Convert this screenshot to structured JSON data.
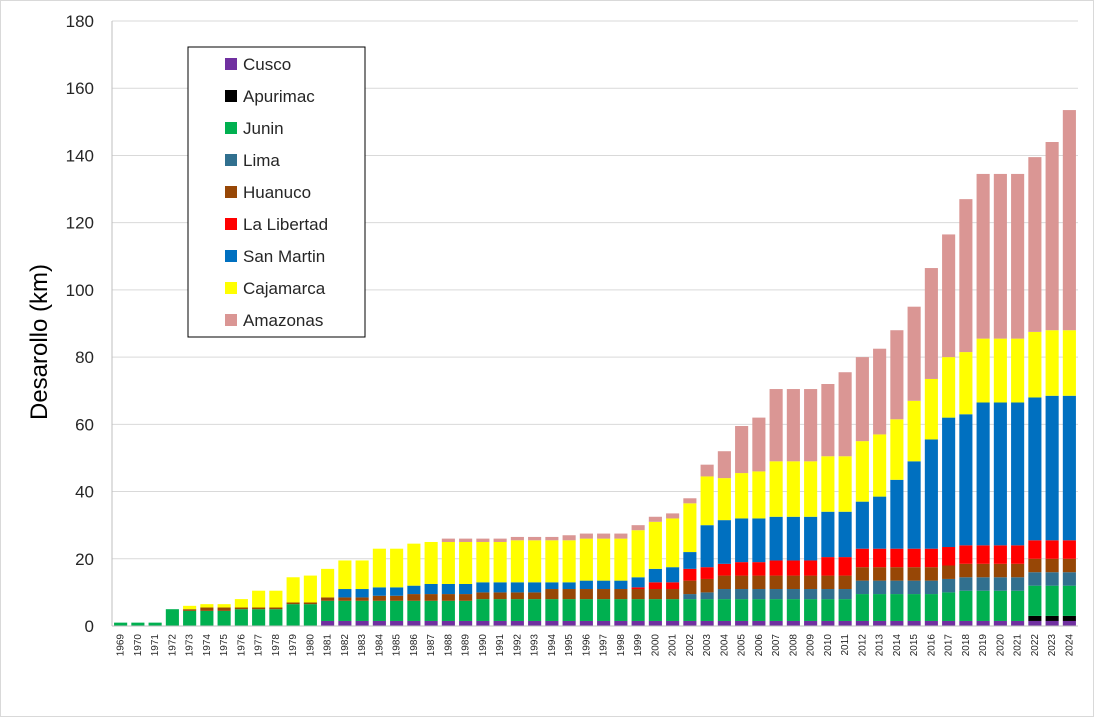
{
  "chart_data": {
    "type": "bar",
    "stacked": true,
    "title": "",
    "xlabel": "",
    "ylabel": "Desarollo (km)",
    "ylim": [
      0,
      180
    ],
    "yticks": [
      0,
      20,
      40,
      60,
      80,
      100,
      120,
      140,
      160,
      180
    ],
    "grid": true,
    "legend_position": "top-left",
    "categories": [
      "1969",
      "1970",
      "1971",
      "1972",
      "1973",
      "1974",
      "1975",
      "1976",
      "1977",
      "1978",
      "1979",
      "1980",
      "1981",
      "1982",
      "1983",
      "1984",
      "1985",
      "1986",
      "1987",
      "1988",
      "1989",
      "1990",
      "1991",
      "1992",
      "1993",
      "1994",
      "1995",
      "1996",
      "1997",
      "1998",
      "1999",
      "2000",
      "2001",
      "2002",
      "2003",
      "2004",
      "2005",
      "2006",
      "2007",
      "2008",
      "2009",
      "2010",
      "2011",
      "2012",
      "2013",
      "2014",
      "2015",
      "2016",
      "2017",
      "2018",
      "2019",
      "2020",
      "2021",
      "2022",
      "2023",
      "2024"
    ],
    "series": [
      {
        "name": "Cusco",
        "color": "#7030a0",
        "values": [
          0,
          0,
          0,
          0,
          0,
          0,
          0,
          0,
          0,
          0,
          0,
          0,
          1.5,
          1.5,
          1.5,
          1.5,
          1.5,
          1.5,
          1.5,
          1.5,
          1.5,
          1.5,
          1.5,
          1.5,
          1.5,
          1.5,
          1.5,
          1.5,
          1.5,
          1.5,
          1.5,
          1.5,
          1.5,
          1.5,
          1.5,
          1.5,
          1.5,
          1.5,
          1.5,
          1.5,
          1.5,
          1.5,
          1.5,
          1.5,
          1.5,
          1.5,
          1.5,
          1.5,
          1.5,
          1.5,
          1.5,
          1.5,
          1.5,
          1.5,
          1.5,
          1.5
        ]
      },
      {
        "name": "Apurimac",
        "color": "#000000",
        "values": [
          0,
          0,
          0,
          0,
          0,
          0,
          0,
          0,
          0,
          0,
          0,
          0,
          0,
          0,
          0,
          0,
          0,
          0,
          0,
          0,
          0,
          0,
          0,
          0,
          0,
          0,
          0,
          0,
          0,
          0,
          0,
          0,
          0,
          0,
          0,
          0,
          0,
          0,
          0,
          0,
          0,
          0,
          0,
          0,
          0,
          0,
          0,
          0,
          0,
          0,
          0,
          0,
          0,
          1.5,
          1.5,
          1.5
        ]
      },
      {
        "name": "Junin",
        "color": "#00b050",
        "values": [
          1,
          1,
          1,
          5,
          4.5,
          4.5,
          4.5,
          5,
          5,
          5,
          6.5,
          6.5,
          6,
          6,
          6,
          6,
          6,
          6,
          6,
          6,
          6,
          6.5,
          6.5,
          6.5,
          6.5,
          6.5,
          6.5,
          6.5,
          6.5,
          6.5,
          6.5,
          6.5,
          6.5,
          6.5,
          6.5,
          6.5,
          6.5,
          6.5,
          6.5,
          6.5,
          6.5,
          6.5,
          6.5,
          8,
          8,
          8,
          8,
          8,
          8.5,
          9,
          9,
          9,
          9,
          9,
          9,
          9
        ]
      },
      {
        "name": "Lima",
        "color": "#31708f",
        "values": [
          0,
          0,
          0,
          0,
          0,
          0,
          0,
          0,
          0,
          0,
          0,
          0,
          0,
          0,
          0,
          0,
          0,
          0,
          0,
          0,
          0,
          0,
          0,
          0,
          0,
          0,
          0,
          0,
          0,
          0,
          0,
          0,
          0,
          1.5,
          2,
          3,
          3,
          3,
          3,
          3,
          3,
          3,
          3,
          4,
          4,
          4,
          4,
          4,
          4,
          4,
          4,
          4,
          4,
          4,
          4,
          4
        ]
      },
      {
        "name": "Huanuco",
        "color": "#974706",
        "values": [
          0,
          0,
          0,
          0,
          0.5,
          1,
          1,
          0.5,
          0.5,
          0.5,
          0.5,
          0.5,
          1,
          1,
          1,
          1.5,
          1.5,
          2,
          2,
          2,
          2,
          2,
          2,
          2,
          2,
          3,
          3,
          3,
          3,
          3,
          3,
          3,
          3,
          4,
          4,
          4,
          4,
          4,
          4,
          4,
          4,
          4,
          4,
          4,
          4,
          4,
          4,
          4,
          4,
          4,
          4,
          4,
          4,
          4,
          4,
          4
        ]
      },
      {
        "name": "La Libertad",
        "color": "#ff0000",
        "values": [
          0,
          0,
          0,
          0,
          0,
          0,
          0,
          0,
          0,
          0,
          0,
          0,
          0,
          0,
          0,
          0,
          0,
          0,
          0,
          0,
          0,
          0,
          0,
          0,
          0,
          0,
          0,
          0,
          0,
          0,
          0.5,
          2,
          2,
          3.5,
          3.5,
          3.5,
          4,
          4,
          4.5,
          4.5,
          4.5,
          5.5,
          5.5,
          5.5,
          5.5,
          5.5,
          5.5,
          5.5,
          5.5,
          5.5,
          5.5,
          5.5,
          5.5,
          5.5,
          5.5,
          5.5
        ]
      },
      {
        "name": "San Martin",
        "color": "#0070c0",
        "values": [
          0,
          0,
          0,
          0,
          0,
          0,
          0,
          0,
          0,
          0,
          0,
          0,
          0,
          2.5,
          2.5,
          2.5,
          2.5,
          2.5,
          3,
          3,
          3,
          3,
          3,
          3,
          3,
          2,
          2,
          2.5,
          2.5,
          2.5,
          3,
          4,
          4.5,
          5,
          12.5,
          13,
          13,
          13,
          13,
          13,
          13,
          13.5,
          13.5,
          14,
          15.5,
          20.5,
          26,
          32.5,
          38.5,
          39,
          42.5,
          42.5,
          42.5,
          42.5,
          43,
          43
        ]
      },
      {
        "name": "Cajamarca",
        "color": "#ffff00",
        "values": [
          0,
          0,
          0,
          0,
          1,
          1,
          1,
          2.5,
          5,
          5,
          7.5,
          8,
          8.5,
          8.5,
          8.5,
          11.5,
          11.5,
          12.5,
          12.5,
          12.5,
          12.5,
          12,
          12,
          12.5,
          12.5,
          12.5,
          12.5,
          12.5,
          12.5,
          12.5,
          14,
          14,
          14.5,
          14.5,
          14.5,
          12.5,
          13.5,
          14,
          16.5,
          16.5,
          16.5,
          16.5,
          16.5,
          18,
          18.5,
          18,
          18,
          18,
          18,
          18.5,
          19,
          19,
          19,
          19.5,
          19.5,
          19.5
        ]
      },
      {
        "name": "Amazonas",
        "color": "#da9694",
        "values": [
          0,
          0,
          0,
          0,
          0,
          0,
          0,
          0,
          0,
          0,
          0,
          0,
          0,
          0,
          0,
          0,
          0,
          0,
          0,
          1,
          1,
          1,
          1,
          1,
          1,
          1,
          1.5,
          1.5,
          1.5,
          1.5,
          1.5,
          1.5,
          1.5,
          1.5,
          3.5,
          8,
          14,
          16,
          21.5,
          21.5,
          21.5,
          21.5,
          25,
          25,
          25.5,
          26.5,
          28,
          33,
          36.5,
          45.5,
          49,
          49,
          49,
          52,
          56,
          65.5
        ]
      }
    ]
  }
}
